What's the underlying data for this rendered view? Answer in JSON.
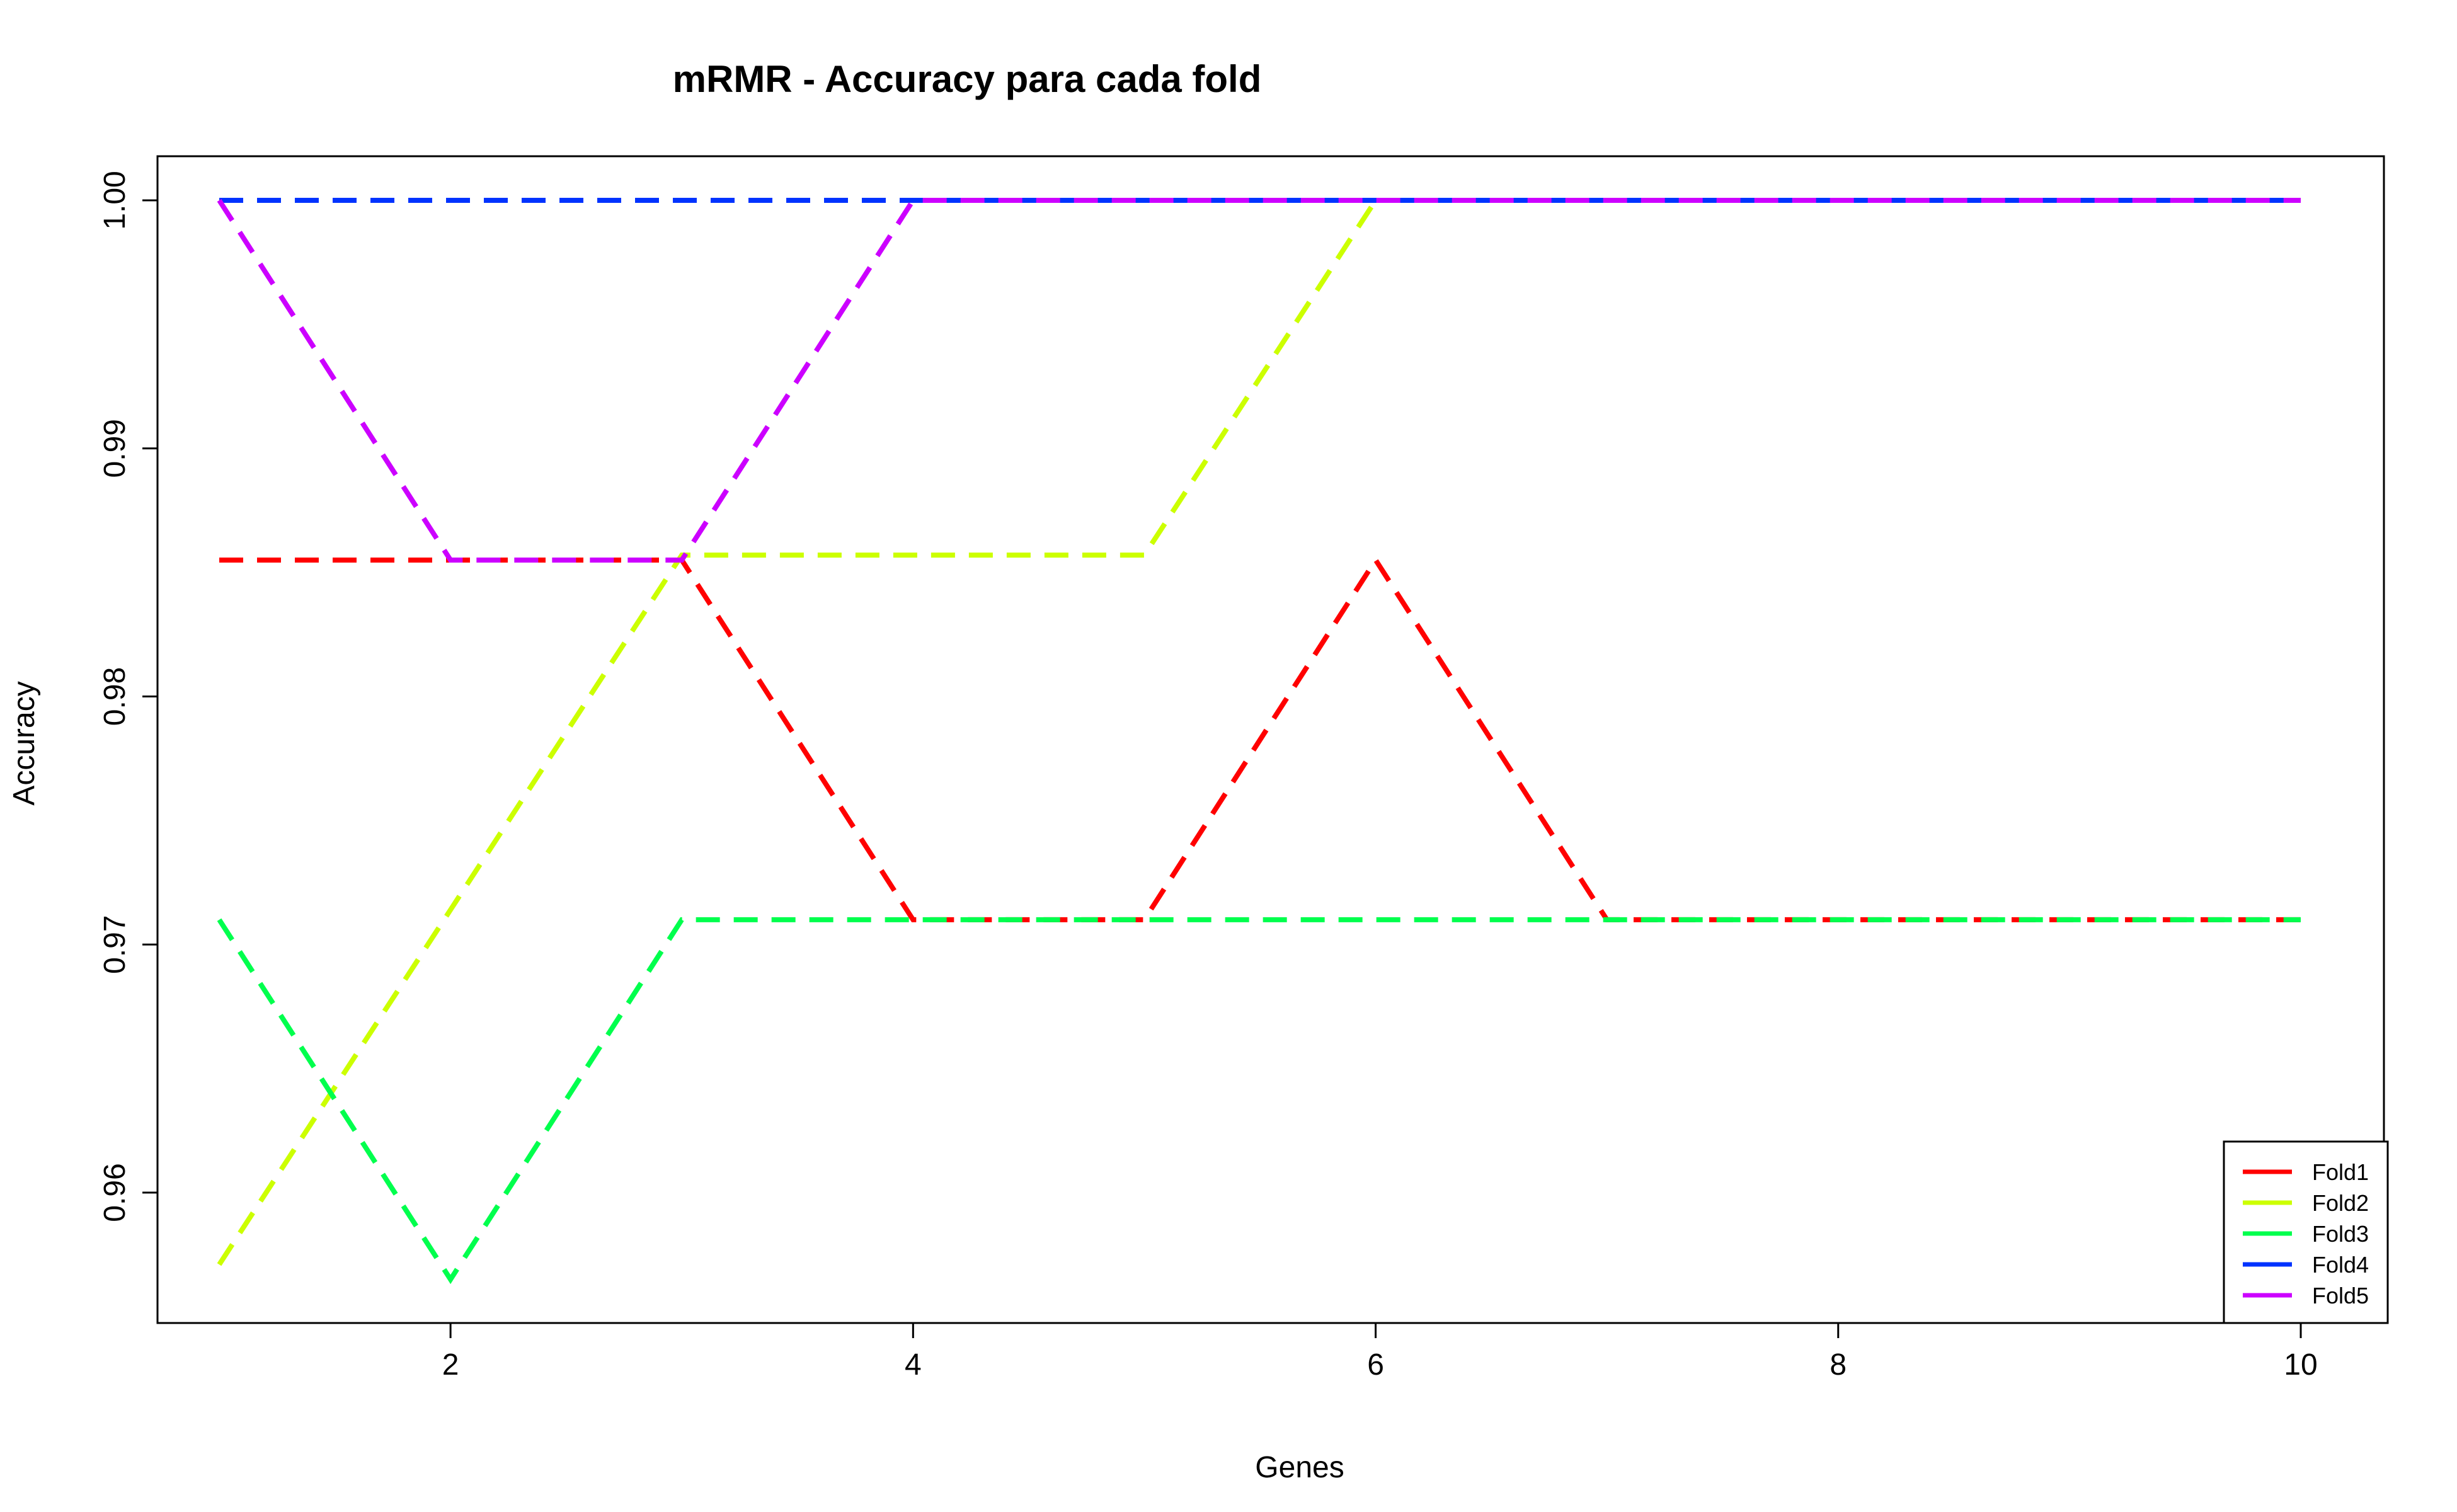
{
  "chart_data": {
    "type": "line",
    "title": "mRMR - Accuracy para cada fold",
    "xlabel": "Genes",
    "ylabel": "Accuracy",
    "x": [
      1,
      2,
      3,
      4,
      5,
      6,
      7,
      8,
      9,
      10
    ],
    "xlim": [
      1,
      10
    ],
    "ylim": [
      0.9565,
      1.0
    ],
    "xticks": [
      2,
      4,
      6,
      8,
      10
    ],
    "yticks": [
      0.96,
      0.97,
      0.98,
      0.99,
      1.0
    ],
    "ytick_labels": [
      "0.96",
      "0.97",
      "0.98",
      "0.99",
      "1.00"
    ],
    "line_style": "dashed",
    "grid": false,
    "legend_position": "bottom-right",
    "series": [
      {
        "name": "Fold1",
        "color": "#ff0000",
        "values": [
          0.9855,
          0.9855,
          0.9855,
          0.971,
          0.971,
          0.9855,
          0.971,
          0.971,
          0.971,
          0.971
        ]
      },
      {
        "name": "Fold2",
        "color": "#ccff00",
        "values": [
          0.9571,
          0.9714,
          0.9857,
          0.9857,
          0.9857,
          1.0,
          1.0,
          1.0,
          1.0,
          1.0
        ]
      },
      {
        "name": "Fold3",
        "color": "#00ff4d",
        "values": [
          0.971,
          0.9565,
          0.971,
          0.971,
          0.971,
          0.971,
          0.971,
          0.971,
          0.971,
          0.971
        ]
      },
      {
        "name": "Fold4",
        "color": "#0033ff",
        "values": [
          1.0,
          1.0,
          1.0,
          1.0,
          1.0,
          1.0,
          1.0,
          1.0,
          1.0,
          1.0
        ]
      },
      {
        "name": "Fold5",
        "color": "#cc00ff",
        "values": [
          1.0,
          0.9855,
          0.9855,
          1.0,
          1.0,
          1.0,
          1.0,
          1.0,
          1.0,
          1.0
        ]
      }
    ]
  }
}
